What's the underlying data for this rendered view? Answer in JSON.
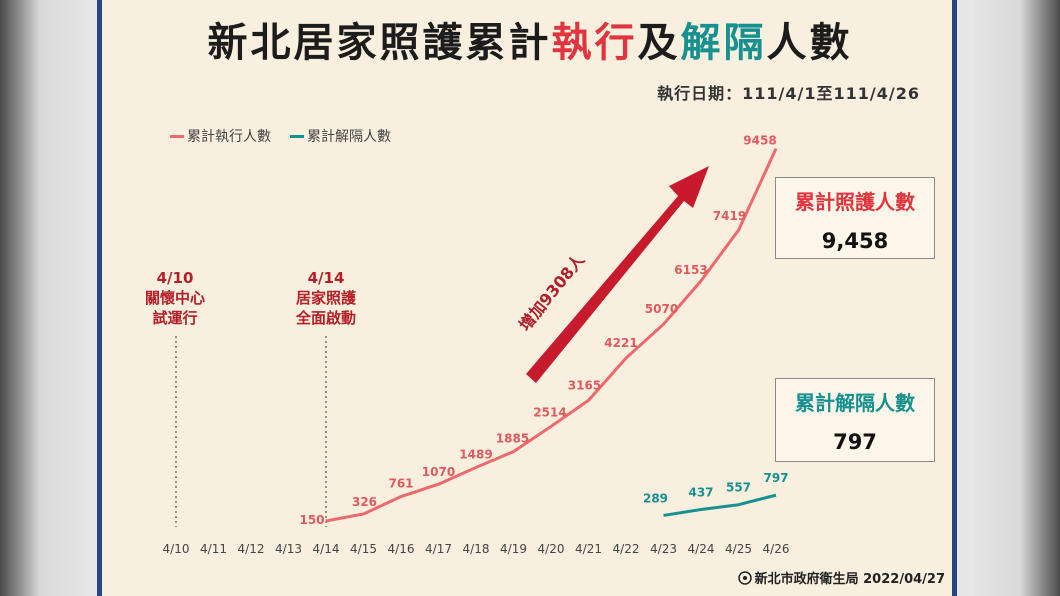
{
  "title": {
    "part1": "新北居家照護累計",
    "part2": "執行",
    "part3": "及",
    "part4": "解隔",
    "part5": "人數"
  },
  "date_text": "執行日期：111/4/1至111/4/26",
  "annotations": [
    {
      "date": "4/10",
      "line1": "關懷中心",
      "line2": "試運行"
    },
    {
      "date": "4/14",
      "line1": "居家照護",
      "line2": "全面啟動"
    }
  ],
  "arrow_label": "增加9308人",
  "box_executed": {
    "label": "累計照護人數",
    "value": "9,458"
  },
  "box_released": {
    "label": "累計解隔人數",
    "value": "797"
  },
  "footer": "新北市政府衛生局 2022/04/27",
  "colors": {
    "executed": "#f0686b",
    "released": "#17918f",
    "red": "#e0353f",
    "teal": "#17918f"
  },
  "chart_data": {
    "type": "line",
    "categories": [
      "4/10",
      "4/11",
      "4/12",
      "4/13",
      "4/14",
      "4/15",
      "4/16",
      "4/17",
      "4/18",
      "4/19",
      "4/20",
      "4/21",
      "4/22",
      "4/23",
      "4/24",
      "4/25",
      "4/26"
    ],
    "series": [
      {
        "name": "累計執行人數",
        "values": [
          null,
          null,
          null,
          null,
          150,
          326,
          761,
          1070,
          1489,
          1885,
          2514,
          3165,
          4221,
          5070,
          6153,
          7419,
          9458
        ]
      },
      {
        "name": "累計解隔人數",
        "values": [
          null,
          null,
          null,
          null,
          null,
          null,
          null,
          null,
          null,
          null,
          null,
          null,
          null,
          289,
          437,
          557,
          797
        ]
      }
    ],
    "grid": false,
    "legend_position": "top-left"
  }
}
